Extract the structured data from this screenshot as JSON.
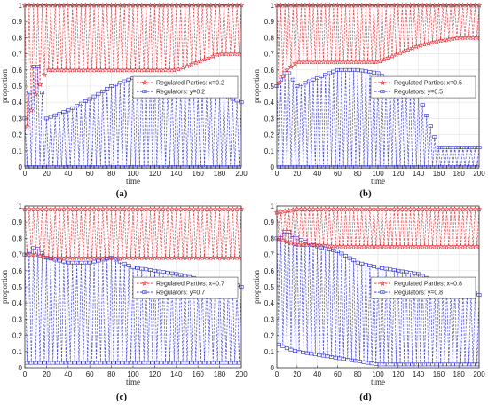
{
  "chart_data": [
    {
      "type": "line",
      "panel_caption": "(a)",
      "xlabel": "time",
      "ylabel": "proportion",
      "xlim": [
        0,
        200
      ],
      "ylim": [
        0,
        1
      ],
      "xticks": [
        "0",
        "20",
        "40",
        "60",
        "80",
        "100",
        "120",
        "140",
        "160",
        "180",
        "200"
      ],
      "yticks": [
        "0",
        "0.1",
        "0.2",
        "0.3",
        "0.4",
        "0.5",
        "0.6",
        "0.7",
        "0.8",
        "0.9",
        "1"
      ],
      "grid": true,
      "legend_position": "center-right",
      "series": [
        {
          "name": "Regulated Parties: x=0.2",
          "color": "#e8242c",
          "marker": "star",
          "linestyle": "dashed",
          "x": [
            0,
            10,
            20,
            40,
            60,
            80,
            100,
            120,
            140,
            160,
            180,
            200
          ],
          "low": [
            0.2,
            0.45,
            0.6,
            0.6,
            0.6,
            0.6,
            0.6,
            0.6,
            0.6,
            0.65,
            0.7,
            0.7
          ],
          "high": [
            1.0,
            1.0,
            1.0,
            1.0,
            1.0,
            1.0,
            1.0,
            1.0,
            1.0,
            1.0,
            1.0,
            1.0
          ]
        },
        {
          "name": "Regulators: y=0.2",
          "color": "#2a2ad0",
          "marker": "square",
          "linestyle": "dashed",
          "x": [
            0,
            10,
            20,
            40,
            60,
            80,
            100,
            120,
            140,
            160,
            180,
            200
          ],
          "low": [
            0.0,
            0.0,
            0.0,
            0.0,
            0.0,
            0.0,
            0.0,
            0.0,
            0.0,
            0.0,
            0.0,
            0.0
          ],
          "high": [
            0.3,
            0.7,
            0.3,
            0.35,
            0.42,
            0.5,
            0.55,
            0.55,
            0.5,
            0.48,
            0.45,
            0.4
          ]
        }
      ]
    },
    {
      "type": "line",
      "panel_caption": "(b)",
      "xlabel": "time",
      "ylabel": "proportion",
      "xlim": [
        0,
        200
      ],
      "ylim": [
        0,
        1
      ],
      "xticks": [
        "0",
        "20",
        "40",
        "60",
        "80",
        "100",
        "120",
        "140",
        "160",
        "180",
        "200"
      ],
      "yticks": [
        "0",
        "0.1",
        "0.2",
        "0.3",
        "0.4",
        "0.5",
        "0.6",
        "0.7",
        "0.8",
        "0.9",
        "1"
      ],
      "grid": true,
      "legend_position": "center-right",
      "series": [
        {
          "name": "Regulated Parties: x=0.5",
          "color": "#e8242c",
          "marker": "star",
          "linestyle": "dashed",
          "x": [
            0,
            10,
            20,
            40,
            60,
            80,
            100,
            120,
            140,
            160,
            180,
            200
          ],
          "low": [
            0.5,
            0.6,
            0.65,
            0.65,
            0.65,
            0.65,
            0.65,
            0.7,
            0.75,
            0.78,
            0.8,
            0.8
          ],
          "high": [
            1.0,
            1.0,
            1.0,
            1.0,
            1.0,
            1.0,
            1.0,
            1.0,
            1.0,
            1.0,
            1.0,
            1.0
          ]
        },
        {
          "name": "Regulators: y=0.5",
          "color": "#2a2ad0",
          "marker": "square",
          "linestyle": "dashed",
          "x": [
            0,
            10,
            20,
            40,
            60,
            80,
            100,
            120,
            140,
            160,
            180,
            200
          ],
          "low": [
            0.0,
            0.0,
            0.0,
            0.0,
            0.0,
            0.0,
            0.0,
            0.0,
            0.0,
            0.0,
            0.0,
            0.0
          ],
          "high": [
            0.5,
            0.6,
            0.5,
            0.55,
            0.6,
            0.6,
            0.58,
            0.5,
            0.45,
            0.12,
            0.12,
            0.12
          ]
        }
      ]
    },
    {
      "type": "line",
      "panel_caption": "(c)",
      "xlabel": "time",
      "ylabel": "proportion",
      "xlim": [
        0,
        200
      ],
      "ylim": [
        0,
        1
      ],
      "xticks": [
        "0",
        "20",
        "40",
        "60",
        "80",
        "100",
        "120",
        "140",
        "160",
        "180",
        "200"
      ],
      "yticks": [
        "0",
        "0.1",
        "0.2",
        "0.3",
        "0.4",
        "0.5",
        "0.6",
        "0.7",
        "0.8",
        "0.9",
        "1"
      ],
      "grid": true,
      "legend_position": "center-right",
      "series": [
        {
          "name": "Regulated Parties: x=0.7",
          "color": "#e8242c",
          "marker": "star",
          "linestyle": "dashed",
          "x": [
            0,
            10,
            20,
            40,
            60,
            80,
            100,
            120,
            140,
            160,
            180,
            200
          ],
          "low": [
            0.7,
            0.7,
            0.68,
            0.68,
            0.68,
            0.68,
            0.68,
            0.68,
            0.68,
            0.68,
            0.68,
            0.68
          ],
          "high": [
            0.98,
            0.98,
            0.98,
            0.98,
            0.98,
            0.98,
            0.98,
            0.98,
            0.98,
            0.98,
            0.98,
            0.98
          ]
        },
        {
          "name": "Regulators: y=0.7",
          "color": "#2a2ad0",
          "marker": "square",
          "linestyle": "dashed",
          "x": [
            0,
            10,
            20,
            40,
            60,
            80,
            100,
            120,
            140,
            160,
            180,
            200
          ],
          "low": [
            0.03,
            0.03,
            0.03,
            0.03,
            0.03,
            0.03,
            0.03,
            0.03,
            0.03,
            0.03,
            0.03,
            0.03
          ],
          "high": [
            0.7,
            0.75,
            0.68,
            0.65,
            0.65,
            0.68,
            0.62,
            0.6,
            0.58,
            0.55,
            0.55,
            0.5
          ]
        }
      ]
    },
    {
      "type": "line",
      "panel_caption": "(d)",
      "xlabel": "time",
      "ylabel": "proportion",
      "xlim": [
        0,
        200
      ],
      "ylim": [
        0,
        1
      ],
      "xticks": [
        "0",
        "20",
        "40",
        "60",
        "80",
        "100",
        "120",
        "140",
        "160",
        "180",
        "200"
      ],
      "yticks": [
        "0",
        "0.1",
        "0.2",
        "0.3",
        "0.4",
        "0.5",
        "0.6",
        "0.7",
        "0.8",
        "0.9",
        "1"
      ],
      "grid": true,
      "legend_position": "center-right",
      "series": [
        {
          "name": "Regulated Parties: x=0.8",
          "color": "#e8242c",
          "marker": "star",
          "linestyle": "dashed",
          "x": [
            0,
            10,
            20,
            40,
            60,
            80,
            100,
            120,
            140,
            160,
            180,
            200
          ],
          "low": [
            0.8,
            0.78,
            0.76,
            0.76,
            0.75,
            0.75,
            0.75,
            0.75,
            0.75,
            0.75,
            0.75,
            0.75
          ],
          "high": [
            0.96,
            0.97,
            0.98,
            0.98,
            0.98,
            0.98,
            0.98,
            0.98,
            0.98,
            0.98,
            0.98,
            0.98
          ]
        },
        {
          "name": "Regulators: y=0.8",
          "color": "#2a2ad0",
          "marker": "square",
          "linestyle": "dashed",
          "x": [
            0,
            10,
            20,
            40,
            60,
            80,
            100,
            120,
            140,
            160,
            180,
            200
          ],
          "low": [
            0.15,
            0.12,
            0.1,
            0.08,
            0.06,
            0.04,
            0.02,
            0.02,
            0.02,
            0.02,
            0.02,
            0.02
          ],
          "high": [
            0.8,
            0.85,
            0.8,
            0.75,
            0.72,
            0.65,
            0.62,
            0.6,
            0.58,
            0.52,
            0.5,
            0.45
          ]
        }
      ]
    }
  ]
}
